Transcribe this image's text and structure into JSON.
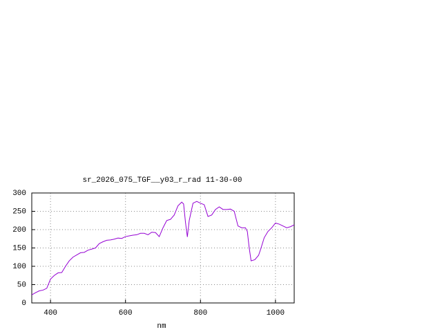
{
  "chart_data": {
    "type": "line",
    "title": "sr_2026_075_TGF__y03_r_rad 11-30-00",
    "x_label": "nm",
    "x": [
      350,
      360,
      370,
      380,
      390,
      400,
      410,
      420,
      430,
      440,
      450,
      460,
      470,
      480,
      490,
      500,
      510,
      520,
      530,
      540,
      550,
      560,
      570,
      580,
      590,
      600,
      610,
      620,
      630,
      640,
      650,
      660,
      670,
      680,
      690,
      700,
      710,
      720,
      730,
      740,
      750,
      755,
      760,
      765,
      770,
      780,
      790,
      800,
      810,
      820,
      830,
      840,
      850,
      860,
      870,
      880,
      890,
      900,
      910,
      920,
      925,
      930,
      935,
      945,
      955,
      960,
      970,
      980,
      990,
      1000,
      1010,
      1020,
      1030,
      1040,
      1050
    ],
    "series": [
      {
        "color": "#9400d3",
        "values": [
          22,
          28,
          33,
          35,
          40,
          65,
          75,
          82,
          83,
          100,
          115,
          125,
          131,
          137,
          138,
          144,
          147,
          150,
          162,
          167,
          171,
          172,
          174,
          177,
          176,
          181,
          183,
          185,
          186,
          190,
          190,
          186,
          193,
          192,
          181,
          205,
          225,
          228,
          240,
          265,
          275,
          270,
          220,
          180,
          225,
          272,
          277,
          272,
          268,
          236,
          240,
          255,
          262,
          255,
          255,
          256,
          250,
          210,
          205,
          205,
          195,
          150,
          115,
          118,
          130,
          145,
          178,
          195,
          205,
          218,
          215,
          210,
          205,
          208,
          213
        ]
      }
    ],
    "xlim": [
      350,
      1050
    ],
    "xticks": [
      400,
      600,
      800,
      1000
    ],
    "ylim": [
      0,
      300
    ],
    "yticks": [
      0,
      50,
      100,
      150,
      200,
      250,
      300
    ],
    "grid": true
  }
}
